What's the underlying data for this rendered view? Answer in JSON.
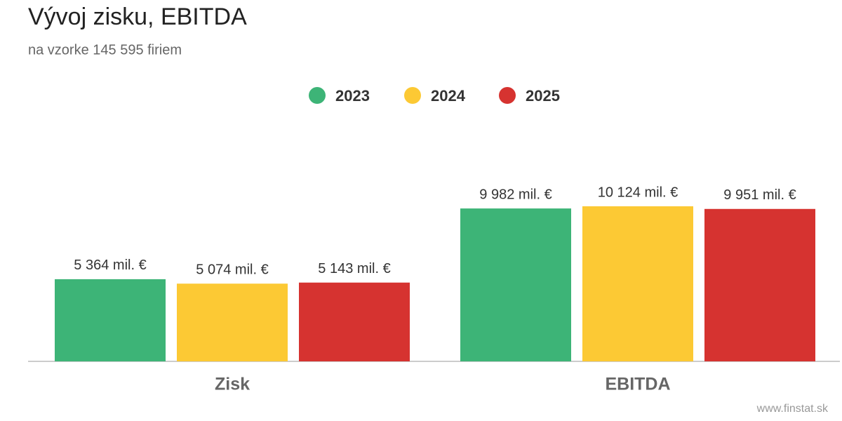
{
  "chart_data": {
    "type": "bar",
    "title": "Vývoj zisku, EBITDA",
    "subtitle": "na vzorke 145 595 firiem",
    "categories": [
      "Zisk",
      "EBITDA"
    ],
    "series": [
      {
        "name": "2023",
        "color": "#3db477",
        "values": [
          5364,
          9982
        ],
        "value_labels": [
          "5 364 mil. €",
          "9 982 mil. €"
        ]
      },
      {
        "name": "2024",
        "color": "#fcc934",
        "values": [
          5074,
          10124
        ],
        "value_labels": [
          "5 074 mil. €",
          "10 124 mil. €"
        ]
      },
      {
        "name": "2025",
        "color": "#d63330",
        "values": [
          5143,
          9951
        ],
        "value_labels": [
          "5 143 mil. €",
          "9 951 mil. €"
        ]
      }
    ],
    "legend": "top",
    "source": "www.finstat.sk"
  }
}
